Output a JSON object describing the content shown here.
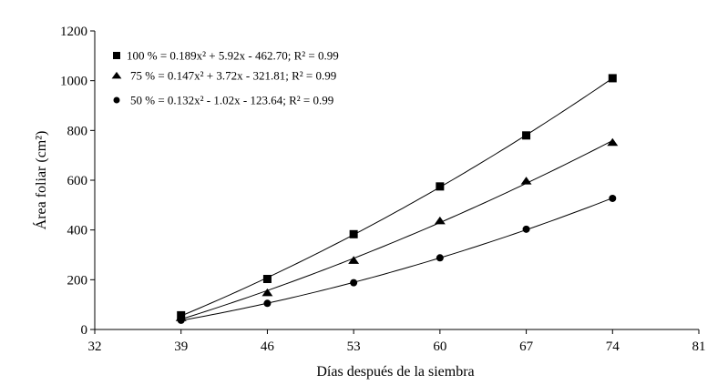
{
  "chart_data": {
    "type": "scatter",
    "xlabel": "Días después de la siembra",
    "ylabel": "Área foliar (cm²)",
    "xlim": [
      32,
      81
    ],
    "ylim": [
      0,
      1200
    ],
    "xticks": [
      32,
      39,
      46,
      53,
      60,
      67,
      74,
      81
    ],
    "yticks": [
      0,
      200,
      400,
      600,
      800,
      1000,
      1200
    ],
    "grid": false,
    "legend_position": "top-left",
    "x": [
      39,
      46,
      53,
      60,
      67,
      74
    ],
    "series": [
      {
        "name": "100 % = 0.189x² + 5.92x - 462.70; R² = 0.99",
        "marker": "square",
        "values": [
          57,
          203,
          383,
          575,
          780,
          1010
        ],
        "fit": {
          "a": 0.189,
          "b": 5.92,
          "c": -462.7
        }
      },
      {
        "name": "75 % = 0.147x² + 3.72x - 321.81; R² = 0.99",
        "marker": "triangle",
        "values": [
          48,
          148,
          278,
          437,
          597,
          752
        ],
        "fit": {
          "a": 0.147,
          "b": 3.72,
          "c": -321.81
        }
      },
      {
        "name": "50 % = 0.132x² - 1.02x - 123.64; R² = 0.99",
        "marker": "circle",
        "values": [
          37,
          105,
          188,
          288,
          403,
          527
        ],
        "fit": {
          "a": 0.132,
          "b": -1.02,
          "c": -123.64
        }
      }
    ]
  }
}
